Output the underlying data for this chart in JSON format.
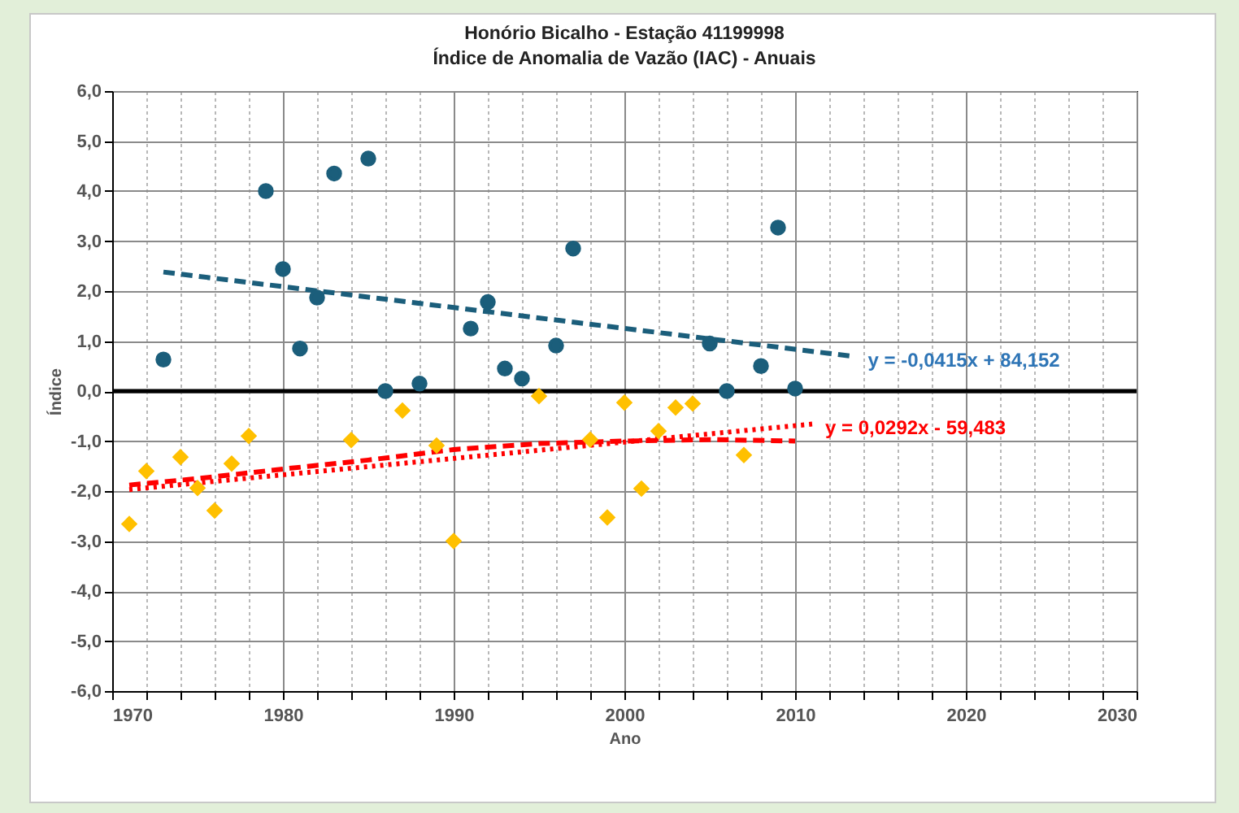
{
  "chart_data": {
    "type": "scatter",
    "title": "Honório Bicalho -  Estação 41199998",
    "subtitle": "Índice de Anomalia de Vazão (IAC) - Anuais",
    "xlabel": "Ano",
    "ylabel": "Índice",
    "xlim": [
      1970,
      2030
    ],
    "xticks": [
      1970,
      {
        "value": 1972,
        "label": null
      },
      {
        "value": 1974,
        "label": null
      },
      {
        "value": 1976,
        "label": null
      },
      {
        "value": 1978,
        "label": null
      },
      1980,
      {
        "value": 1982,
        "label": null
      },
      {
        "value": 1984,
        "label": null
      },
      {
        "value": 1986,
        "label": null
      },
      {
        "value": 1988,
        "label": null
      },
      1990,
      {
        "value": 1992,
        "label": null
      },
      {
        "value": 1994,
        "label": null
      },
      {
        "value": 1996,
        "label": null
      },
      {
        "value": 1998,
        "label": null
      },
      2000,
      {
        "value": 2002,
        "label": null
      },
      {
        "value": 2004,
        "label": null
      },
      {
        "value": 2006,
        "label": null
      },
      {
        "value": 2008,
        "label": null
      },
      2010,
      {
        "value": 2012,
        "label": null
      },
      {
        "value": 2014,
        "label": null
      },
      {
        "value": 2016,
        "label": null
      },
      {
        "value": 2018,
        "label": null
      },
      2020,
      {
        "value": 2022,
        "label": null
      },
      {
        "value": 2024,
        "label": null
      },
      {
        "value": 2026,
        "label": null
      },
      {
        "value": 2028,
        "label": null
      },
      2030
    ],
    "ylim": [
      -6,
      6
    ],
    "yticks": [
      {
        "value": -6,
        "label": "-6,0"
      },
      {
        "value": -5,
        "label": "-5,0"
      },
      {
        "value": -4,
        "label": "-4,0"
      },
      {
        "value": -3,
        "label": "-3,0"
      },
      {
        "value": -2,
        "label": "-2,0"
      },
      {
        "value": -1,
        "label": "-1,0"
      },
      {
        "value": 0,
        "label": "0,0"
      },
      {
        "value": 1,
        "label": "1,0"
      },
      {
        "value": 2,
        "label": "2,0"
      },
      {
        "value": 3,
        "label": "3,0"
      },
      {
        "value": 4,
        "label": "4,0"
      },
      {
        "value": 5,
        "label": "5,0"
      },
      {
        "value": 6,
        "label": "6,0"
      }
    ],
    "grid": true,
    "series": [
      {
        "marker": "circle",
        "color": "#1b5e7b",
        "x": [
          1973,
          1979,
          1980,
          1981,
          1982,
          1983,
          1985,
          1986,
          1988,
          1991,
          1992,
          1993,
          1994,
          1996,
          1997,
          2005,
          2006,
          2008,
          2009,
          2010
        ],
        "values": [
          0.63,
          4.0,
          2.44,
          0.85,
          1.87,
          4.35,
          4.65,
          0.0,
          0.15,
          1.25,
          1.78,
          0.45,
          0.25,
          0.91,
          2.85,
          0.95,
          0.0,
          0.5,
          3.27,
          0.05
        ]
      },
      {
        "marker": "diamond",
        "color": "#ffc000",
        "x": [
          1971,
          1972,
          1974,
          1975,
          1976,
          1977,
          1978,
          1984,
          1987,
          1989,
          1990,
          1995,
          1998,
          1999,
          2000,
          2001,
          2002,
          2003,
          2004,
          2007
        ],
        "values": [
          -2.66,
          -1.6,
          -1.32,
          -1.94,
          -2.39,
          -1.45,
          -0.9,
          -0.98,
          -0.39,
          -1.09,
          -3.0,
          -0.1,
          -0.97,
          -2.53,
          -0.23,
          -1.95,
          -0.8,
          -0.33,
          -0.25,
          -1.28
        ]
      },
      {
        "type": "line",
        "line_style": "dashed",
        "color": "#1b5e7b",
        "x": [
          1973,
          2013.5
        ],
        "values": [
          2.38,
          0.69
        ]
      },
      {
        "type": "line",
        "line_style": "dotted",
        "color": "#ff0000",
        "x": [
          1971,
          2011
        ],
        "values": [
          -1.97,
          -0.66
        ]
      },
      {
        "type": "line",
        "line_style": "dashed",
        "color": "#ff0000",
        "x": [
          1971,
          1975,
          1980,
          1985,
          1990,
          1995,
          2000,
          2005,
          2010
        ],
        "values": [
          -1.88,
          -1.75,
          -1.56,
          -1.38,
          -1.17,
          -1.05,
          -1.0,
          -0.97,
          -1.0
        ]
      }
    ],
    "ref_lines": [
      {
        "axis": "y",
        "value": 0,
        "color": "#000000"
      }
    ],
    "annotations": [
      "y = -0,0415x + 84,152",
      "y = 0,0292x - 59,483"
    ]
  }
}
